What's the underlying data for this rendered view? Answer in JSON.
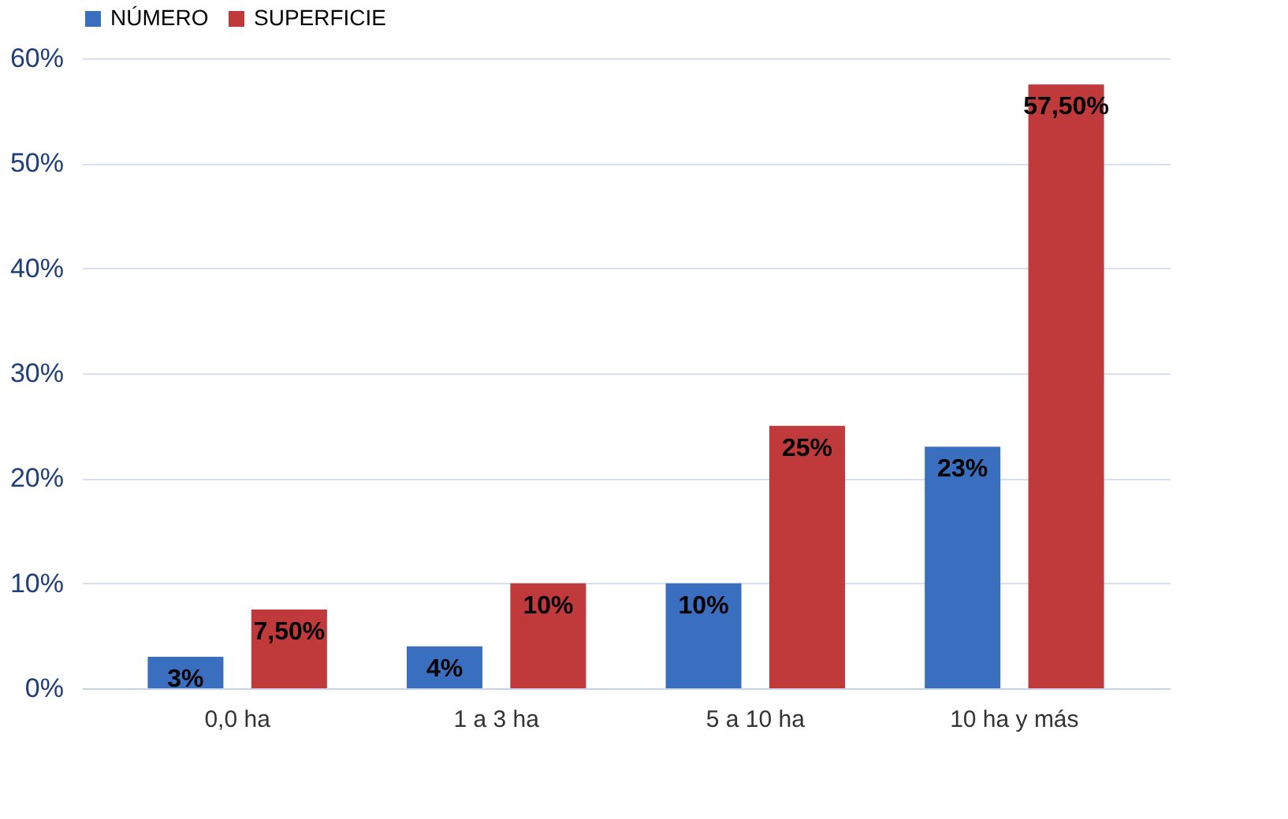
{
  "chart_data": {
    "type": "bar",
    "categories": [
      "0,0 ha",
      "1 a 3 ha",
      "5 a 10 ha",
      "10 ha y más"
    ],
    "series": [
      {
        "name": "NÚMERO",
        "color": "#3a6fbf",
        "values": [
          3,
          4,
          10,
          23
        ],
        "value_labels": [
          "3%",
          "4%",
          "10%",
          "23%"
        ]
      },
      {
        "name": "SUPERFICIE",
        "color": "#c0393b",
        "values": [
          7.5,
          10,
          25,
          57.5
        ],
        "value_labels": [
          "7,50%",
          "10%",
          "25%",
          "57,50%"
        ]
      }
    ],
    "ylim": [
      0,
      60
    ],
    "yticks": [
      {
        "value": 0,
        "label": "0%"
      },
      {
        "value": 10,
        "label": "10%"
      },
      {
        "value": 20,
        "label": "20%"
      },
      {
        "value": 30,
        "label": "30%"
      },
      {
        "value": 40,
        "label": "40%"
      },
      {
        "value": 50,
        "label": "50%"
      },
      {
        "value": 60,
        "label": "60%"
      }
    ],
    "grid": "y",
    "legend": "top"
  }
}
